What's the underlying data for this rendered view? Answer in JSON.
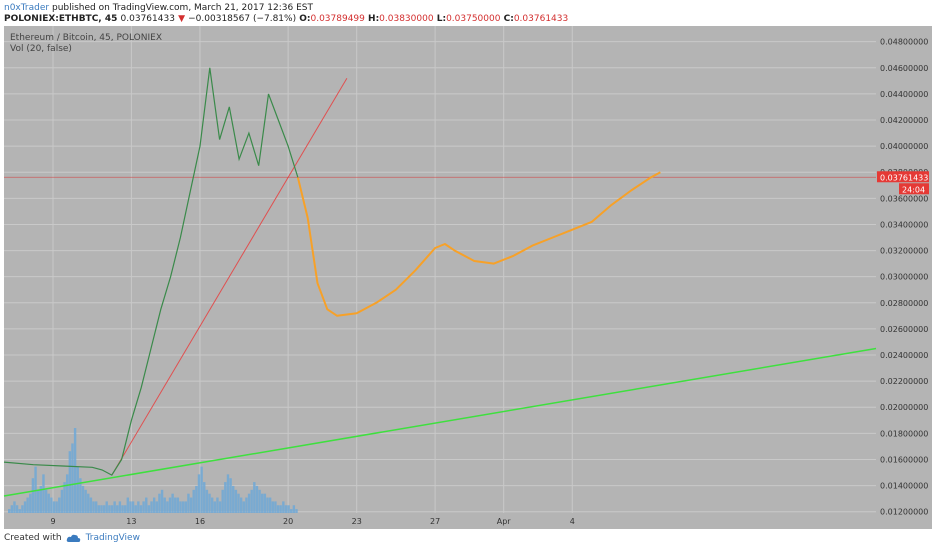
{
  "header": {
    "author": "n0xTrader",
    "published": "published on TradingView.com, March 21, 2017 12:36 EST",
    "symbol_line": "POLONIEX:ETHBTC, 45",
    "last": "0.03761433",
    "change_arrow": "▼",
    "change": "−0.00318567 (−7.81%)",
    "o_label": "O:",
    "o_value": "0.03789499",
    "h_label": "H:",
    "h_value": "0.03830000",
    "l_label": "L:",
    "l_value": "0.03750000",
    "c_label": "C:",
    "c_value": "0.03761433"
  },
  "overlay": {
    "title": "Ethereum / Bitcoin, 45, POLONIEX",
    "volume": "Vol (20, false)"
  },
  "footer": {
    "created_with": "Created with",
    "brand": "TradingView"
  },
  "colors": {
    "plot_bg": "#b4b4b4",
    "axis_bg": "#b4b4b4",
    "price_line": "#d43a3a",
    "projection": "#f7a128",
    "support": "#3ee03e",
    "trend": "#e05050",
    "volume": "#6fa8d6",
    "candle": "#3a8a4a"
  },
  "chart_data": {
    "type": "line",
    "title": "Ethereum / Bitcoin, 45, POLONIEX",
    "x_ticks": [
      "9",
      "13",
      "16",
      "20",
      "23",
      "27",
      "Apr",
      "4"
    ],
    "y_ticks": [
      "0.04800000",
      "0.04600000",
      "0.04400000",
      "0.04200000",
      "0.04000000",
      "0.03800000",
      "0.03600000",
      "0.03400000",
      "0.03200000",
      "0.03000000",
      "0.02800000",
      "0.02600000",
      "0.02400000",
      "0.02200000",
      "0.02000000",
      "0.01800000",
      "0.01600000",
      "0.01400000",
      "0.01200000"
    ],
    "ylim": [
      0.0119,
      0.0492
    ],
    "last_price_label": "0.03761433",
    "countdown_label": "24:04",
    "price_series": [
      [
        0,
        0.0158
      ],
      [
        3,
        0.0156
      ],
      [
        6,
        0.0155
      ],
      [
        9,
        0.0154
      ],
      [
        10,
        0.0152
      ],
      [
        11,
        0.0148
      ],
      [
        12,
        0.016
      ],
      [
        13,
        0.019
      ],
      [
        14,
        0.0215
      ],
      [
        15,
        0.0245
      ],
      [
        16,
        0.0275
      ],
      [
        17,
        0.03
      ],
      [
        18,
        0.033
      ],
      [
        19,
        0.0365
      ],
      [
        20,
        0.04
      ],
      [
        21,
        0.046
      ],
      [
        22,
        0.0405
      ],
      [
        23,
        0.043
      ],
      [
        24,
        0.039
      ],
      [
        25,
        0.041
      ],
      [
        26,
        0.0385
      ],
      [
        27,
        0.044
      ],
      [
        28,
        0.042
      ],
      [
        29,
        0.04
      ],
      [
        30,
        0.0376
      ]
    ],
    "projection": [
      [
        30,
        0.0376
      ],
      [
        31,
        0.0345
      ],
      [
        32,
        0.0295
      ],
      [
        33,
        0.0275
      ],
      [
        34,
        0.027
      ],
      [
        36,
        0.0272
      ],
      [
        38,
        0.028
      ],
      [
        40,
        0.029
      ],
      [
        42,
        0.0305
      ],
      [
        44,
        0.0322
      ],
      [
        45,
        0.0325
      ],
      [
        46,
        0.032
      ],
      [
        48,
        0.0312
      ],
      [
        50,
        0.031
      ],
      [
        52,
        0.0316
      ],
      [
        54,
        0.0324
      ],
      [
        56,
        0.033
      ],
      [
        58,
        0.0336
      ],
      [
        60,
        0.0342
      ],
      [
        62,
        0.0355
      ],
      [
        64,
        0.0366
      ],
      [
        66,
        0.0376
      ],
      [
        67,
        0.038
      ]
    ],
    "support_line": [
      [
        0,
        0.0132
      ],
      [
        89,
        0.0245
      ]
    ],
    "trend_line": [
      [
        11,
        0.0148
      ],
      [
        35,
        0.0452
      ]
    ],
    "volume": [
      1,
      2,
      3,
      2,
      1,
      2,
      3,
      4,
      5,
      9,
      12,
      6,
      7,
      10,
      6,
      5,
      4,
      3,
      3,
      4,
      6,
      8,
      10,
      16,
      18,
      22,
      12,
      9,
      7,
      6,
      5,
      4,
      3,
      3,
      2,
      2,
      2,
      3,
      2,
      2,
      3,
      2,
      3,
      2,
      2,
      4,
      3,
      3,
      2,
      3,
      2,
      3,
      4,
      2,
      3,
      4,
      3,
      5,
      6,
      4,
      3,
      4,
      5,
      4,
      4,
      3,
      3,
      3,
      5,
      4,
      6,
      7,
      10,
      12,
      8,
      6,
      5,
      4,
      3,
      4,
      3,
      6,
      8,
      10,
      9,
      7,
      6,
      5,
      4,
      3,
      4,
      5,
      6,
      8,
      7,
      6,
      5,
      5,
      4,
      4,
      3,
      3,
      2,
      2,
      3,
      2,
      2,
      1,
      2,
      1
    ]
  }
}
